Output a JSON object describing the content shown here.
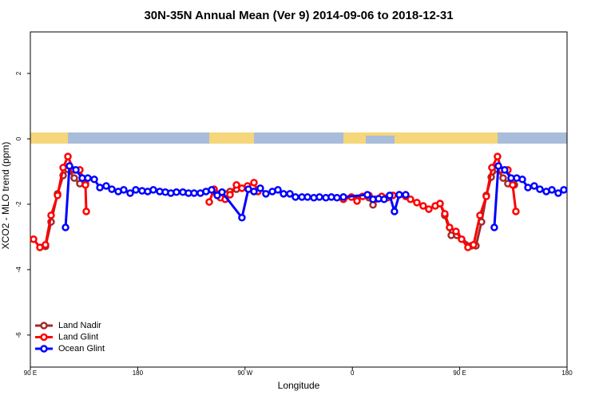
{
  "chart_data": {
    "type": "line",
    "title": "30N-35N Annual Mean (Ver 9)   2014-09-06 to 2018-12-31",
    "x_label": "Longitude",
    "y_label": "XCO2 - MLO trend (ppm)",
    "xlim": [
      90,
      540
    ],
    "ylim": [
      -6.98,
      3.27
    ],
    "xticks": [
      {
        "value": 90,
        "label": "90 E"
      },
      180,
      {
        "value": 270,
        "label": "90 W"
      },
      {
        "value": 360,
        "label": "0"
      },
      {
        "value": 450,
        "label": "90 E"
      },
      {
        "value": 540,
        "label": "180"
      }
    ],
    "yticks": [
      -6,
      -4,
      -2,
      0,
      2
    ],
    "legend": "bottom-left",
    "series": [
      {
        "name": "Land Nadir",
        "color": "#a52a2a",
        "x": [
          102.7,
          107.4,
          112.8,
          117.5,
          121.5,
          126.8,
          131.5,
          136.2,
          null,
          244,
          257.4,
          262.8,
          272.1,
          277.5,
          null,
          352.5,
          373.9,
          377.3,
          null,
          433.5,
          437.5,
          442.9,
          447.6,
          459.6,
          463.6,
          468.3,
          472.3,
          476.4,
          481.7,
          486.4,
          490.4,
          495.8
        ],
        "values": [
          -3.29,
          -2.54,
          -1.68,
          -1.12,
          -0.93,
          -1.2,
          -1.37,
          -1.37,
          null,
          -1.61,
          -1.61,
          -1.54,
          -1.51,
          -1.61,
          null,
          -1.78,
          -1.8,
          -2.02,
          null,
          -1.98,
          -2.34,
          -2.95,
          -2.95,
          -3.27,
          -3.27,
          -2.54,
          -1.73,
          -1.17,
          -0.93,
          -1.2,
          -1.37,
          -1.41
        ]
      },
      {
        "name": "Land Glint",
        "color": "#ff0000",
        "x": [
          92.7,
          98,
          102.7,
          107.4,
          112.8,
          117.5,
          121.5,
          126.2,
          131.5,
          136.2,
          136.9,
          null,
          240,
          244,
          249.4,
          253.4,
          257.4,
          262.8,
          267.4,
          272.1,
          277.5,
          280.8,
          null,
          352.5,
          359.2,
          363.9,
          368.6,
          373.9,
          379.3,
          384.6,
          389.3,
          394,
          399.3,
          404.7,
          408.7,
          414.1,
          419.4,
          424.1,
          429.5,
          433.5,
          437.5,
          441.5,
          446.9,
          451.6,
          456.9,
          461.6,
          467,
          472.3,
          477,
          481.7,
          485,
          490.4,
          494.4,
          497.1
        ],
        "values": [
          -3.07,
          -3.32,
          -3.24,
          -2.34,
          -1.73,
          -0.88,
          -0.54,
          -0.95,
          -0.95,
          -1.41,
          -2.22,
          null,
          -1.93,
          -1.54,
          -1.8,
          -1.85,
          -1.71,
          -1.41,
          -1.51,
          -1.44,
          -1.34,
          -1.61,
          null,
          -1.85,
          -1.78,
          -1.9,
          -1.76,
          -1.73,
          -1.85,
          -1.76,
          -1.8,
          -1.73,
          -1.71,
          -1.76,
          -1.85,
          -1.95,
          -2.05,
          -2.15,
          -2.05,
          -1.98,
          -2.29,
          -2.71,
          -2.83,
          -3.07,
          -3.32,
          -3.24,
          -2.34,
          -1.76,
          -0.88,
          -0.54,
          -0.95,
          -0.95,
          -1.41,
          -2.22
        ]
      },
      {
        "name": "Ocean Glint",
        "color": "#0000ff",
        "x": [
          119.5,
          122.8,
          128.2,
          133.5,
          138.2,
          143.6,
          148.3,
          153.6,
          158.3,
          163.7,
          168.3,
          173.7,
          178.4,
          183.7,
          188.4,
          193.1,
          198.5,
          203.2,
          207.8,
          212.5,
          217.9,
          222.6,
          227.3,
          232.6,
          237.3,
          242,
          246.7,
          250.7,
          267.4,
          272.8,
          277.5,
          282.8,
          287.5,
          292.9,
          297.6,
          302.3,
          307.6,
          312.3,
          317.7,
          322.4,
          327.7,
          332.4,
          337.8,
          342.4,
          347.1,
          352.5,
          372.6,
          377.3,
          382,
          386.6,
          391.3,
          395.3,
          399.3,
          404.7,
          null,
          479,
          482.4,
          487.7,
          493.1,
          497.8,
          502.5,
          507.2,
          512.5,
          517.2,
          522.6,
          527.3,
          532.6,
          537.3
        ],
        "values": [
          -2.71,
          -0.83,
          -0.95,
          -1.2,
          -1.2,
          -1.24,
          -1.49,
          -1.44,
          -1.54,
          -1.61,
          -1.56,
          -1.66,
          -1.56,
          -1.59,
          -1.61,
          -1.56,
          -1.61,
          -1.63,
          -1.66,
          -1.63,
          -1.63,
          -1.66,
          -1.66,
          -1.66,
          -1.61,
          -1.56,
          -1.73,
          -1.63,
          -2.41,
          -1.54,
          -1.61,
          -1.51,
          -1.68,
          -1.61,
          -1.56,
          -1.68,
          -1.68,
          -1.78,
          -1.78,
          -1.78,
          -1.8,
          -1.78,
          -1.8,
          -1.78,
          -1.8,
          -1.78,
          -1.71,
          -1.85,
          -1.83,
          -1.85,
          -1.73,
          -2.22,
          -1.71,
          -1.71,
          null,
          -2.71,
          -0.83,
          -0.95,
          -1.2,
          -1.2,
          -1.24,
          -1.49,
          -1.44,
          -1.54,
          -1.61,
          -1.56,
          -1.66,
          -1.56
        ]
      }
    ]
  }
}
